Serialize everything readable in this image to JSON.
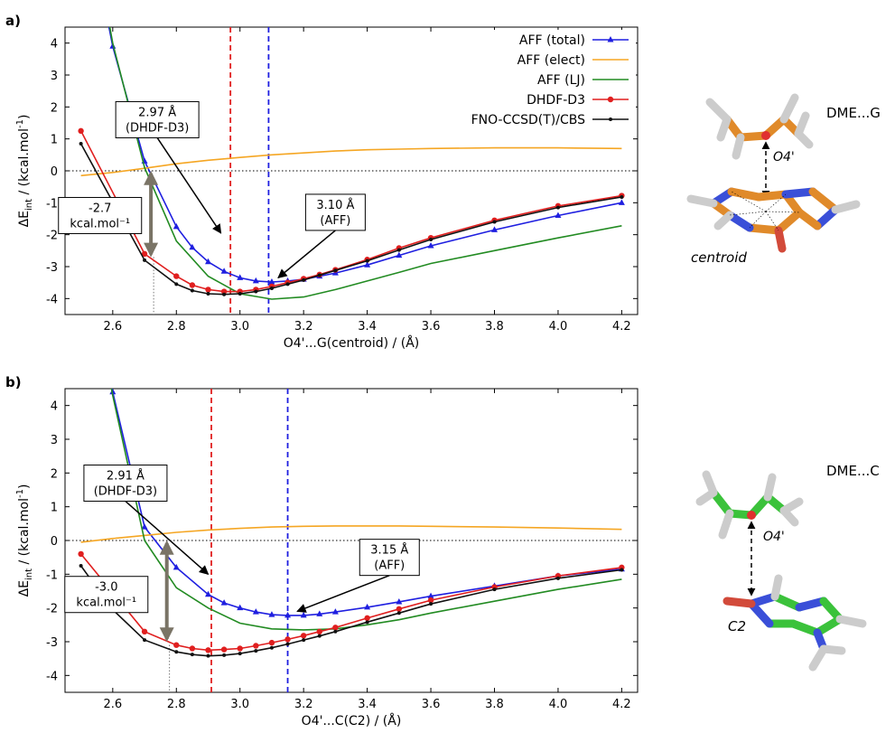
{
  "chart_data": [
    {
      "type": "line",
      "panel_label": "a)",
      "xlabel": "O4'...G(centroid) / (Å)",
      "ylabel_main": "ΔE",
      "ylabel_sub": "int",
      "ylabel_rest": " / (kcal.mol",
      "ylabel_sup": "-1",
      "ylabel_close": ")",
      "xlim": [
        2.45,
        4.25
      ],
      "ylim": [
        -4.5,
        4.5
      ],
      "xticks": [
        "2.6",
        "2.8",
        "3.0",
        "3.2",
        "3.4",
        "3.6",
        "3.8",
        "4.0",
        "4.2"
      ],
      "yticks": [
        "-4",
        "-3",
        "-2",
        "-1",
        "0",
        "1",
        "2",
        "3",
        "4"
      ],
      "legend_position": "top-right",
      "series": [
        {
          "name": "AFF (total)",
          "color": "#1f1fe0",
          "marker": "triangle",
          "x": [
            2.5,
            2.6,
            2.7,
            2.8,
            2.85,
            2.9,
            2.95,
            3.0,
            3.05,
            3.1,
            3.15,
            3.2,
            3.25,
            3.3,
            3.4,
            3.5,
            3.6,
            3.8,
            4.0,
            4.2
          ],
          "y": [
            9.0,
            3.9,
            0.3,
            -1.75,
            -2.4,
            -2.85,
            -3.15,
            -3.35,
            -3.45,
            -3.48,
            -3.45,
            -3.4,
            -3.3,
            -3.2,
            -2.95,
            -2.65,
            -2.35,
            -1.85,
            -1.4,
            -1.0
          ]
        },
        {
          "name": "AFF (elect)",
          "color": "#f5a623",
          "marker": "none",
          "x": [
            2.5,
            2.6,
            2.7,
            2.8,
            2.9,
            3.0,
            3.1,
            3.2,
            3.3,
            3.4,
            3.5,
            3.6,
            3.8,
            4.0,
            4.2
          ],
          "y": [
            -0.15,
            -0.05,
            0.08,
            0.22,
            0.33,
            0.42,
            0.5,
            0.56,
            0.62,
            0.66,
            0.68,
            0.7,
            0.72,
            0.72,
            0.7
          ]
        },
        {
          "name": "AFF (LJ)",
          "color": "#228b22",
          "marker": "none",
          "x": [
            2.5,
            2.6,
            2.7,
            2.8,
            2.9,
            3.0,
            3.1,
            3.2,
            3.3,
            3.4,
            3.5,
            3.6,
            3.8,
            4.0,
            4.2
          ],
          "y": [
            9.5,
            4.0,
            0.1,
            -2.2,
            -3.3,
            -3.85,
            -4.02,
            -3.95,
            -3.72,
            -3.45,
            -3.18,
            -2.9,
            -2.5,
            -2.1,
            -1.72
          ]
        },
        {
          "name": "DHDF-D3",
          "color": "#e01f1f",
          "marker": "circle",
          "x": [
            2.5,
            2.7,
            2.8,
            2.85,
            2.9,
            2.95,
            3.0,
            3.05,
            3.1,
            3.15,
            3.2,
            3.25,
            3.3,
            3.4,
            3.5,
            3.6,
            3.8,
            4.0,
            4.2
          ],
          "y": [
            1.25,
            -2.6,
            -3.3,
            -3.58,
            -3.72,
            -3.78,
            -3.78,
            -3.72,
            -3.62,
            -3.5,
            -3.38,
            -3.25,
            -3.1,
            -2.78,
            -2.42,
            -2.1,
            -1.55,
            -1.1,
            -0.78
          ]
        },
        {
          "name": "FNO-CCSD(T)/CBS",
          "color": "#111111",
          "marker": "dot",
          "x": [
            2.5,
            2.7,
            2.8,
            2.85,
            2.9,
            2.95,
            3.0,
            3.05,
            3.1,
            3.15,
            3.2,
            3.25,
            3.3,
            3.4,
            3.5,
            3.6,
            3.8,
            4.0,
            4.2
          ],
          "y": [
            0.85,
            -2.8,
            -3.55,
            -3.75,
            -3.85,
            -3.87,
            -3.85,
            -3.78,
            -3.68,
            -3.55,
            -3.42,
            -3.27,
            -3.12,
            -2.82,
            -2.48,
            -2.15,
            -1.6,
            -1.15,
            -0.82
          ]
        }
      ],
      "vlines": [
        {
          "x": 2.97,
          "color": "#e01f1f"
        },
        {
          "x": 3.09,
          "color": "#1f1fe0"
        }
      ],
      "annotations": [
        {
          "lines": [
            "2.97 Å",
            "(DHDF-D3)"
          ],
          "box_x": 2.74,
          "box_y": 1.6,
          "arrow_to": [
            2.94,
            -1.95
          ]
        },
        {
          "lines": [
            "3.10 Å",
            "(AFF)"
          ],
          "box_x": 3.3,
          "box_y": -1.3,
          "arrow_to": [
            3.12,
            -3.35
          ]
        },
        {
          "lines": [
            "-2.7",
            "kcal.mol⁻¹"
          ],
          "box_x": 2.56,
          "box_y": -1.4,
          "arrow_to": null
        }
      ],
      "double_arrow": {
        "x": 2.72,
        "y_from": 0.0,
        "y_to": -2.7
      },
      "molecule_label": "DME...G",
      "atom_labels": [
        "O4'",
        "centroid"
      ]
    },
    {
      "type": "line",
      "panel_label": "b)",
      "xlabel": "O4'...C(C2) / (Å)",
      "ylabel_main": "ΔE",
      "ylabel_sub": "int",
      "ylabel_rest": " / (kcal.mol",
      "ylabel_sup": "-1",
      "ylabel_close": ")",
      "xlim": [
        2.45,
        4.25
      ],
      "ylim": [
        -4.5,
        4.5
      ],
      "xticks": [
        "2.6",
        "2.8",
        "3.0",
        "3.2",
        "3.4",
        "3.6",
        "3.8",
        "4.0",
        "4.2"
      ],
      "yticks": [
        "-4",
        "-3",
        "-2",
        "-1",
        "0",
        "1",
        "2",
        "3",
        "4"
      ],
      "series": [
        {
          "name": "AFF (total)",
          "color": "#1f1fe0",
          "marker": "triangle",
          "x": [
            2.5,
            2.6,
            2.7,
            2.8,
            2.9,
            2.95,
            3.0,
            3.05,
            3.1,
            3.15,
            3.2,
            3.25,
            3.3,
            3.4,
            3.5,
            3.6,
            3.8,
            4.0,
            4.2
          ],
          "y": [
            9.0,
            4.4,
            0.4,
            -0.8,
            -1.6,
            -1.85,
            -2.0,
            -2.12,
            -2.2,
            -2.22,
            -2.22,
            -2.18,
            -2.12,
            -1.98,
            -1.82,
            -1.65,
            -1.35,
            -1.05,
            -0.85
          ]
        },
        {
          "name": "AFF (elect)",
          "color": "#f5a623",
          "marker": "none",
          "x": [
            2.5,
            2.6,
            2.7,
            2.8,
            2.9,
            3.0,
            3.1,
            3.2,
            3.3,
            3.4,
            3.5,
            3.6,
            3.8,
            4.0,
            4.2
          ],
          "y": [
            -0.05,
            0.06,
            0.15,
            0.24,
            0.31,
            0.36,
            0.4,
            0.42,
            0.43,
            0.43,
            0.43,
            0.42,
            0.4,
            0.37,
            0.33
          ]
        },
        {
          "name": "AFF (LJ)",
          "color": "#228b22",
          "marker": "none",
          "x": [
            2.5,
            2.6,
            2.7,
            2.8,
            2.9,
            3.0,
            3.1,
            3.2,
            3.3,
            3.4,
            3.5,
            3.6,
            3.8,
            4.0,
            4.2
          ],
          "y": [
            9.5,
            4.3,
            0.0,
            -1.4,
            -2.0,
            -2.45,
            -2.62,
            -2.65,
            -2.62,
            -2.5,
            -2.35,
            -2.15,
            -1.8,
            -1.45,
            -1.15
          ]
        },
        {
          "name": "DHDF-D3",
          "color": "#e01f1f",
          "marker": "circle",
          "x": [
            2.5,
            2.7,
            2.8,
            2.85,
            2.9,
            2.95,
            3.0,
            3.05,
            3.1,
            3.15,
            3.2,
            3.25,
            3.3,
            3.4,
            3.5,
            3.6,
            3.8,
            4.0,
            4.2
          ],
          "y": [
            -0.4,
            -2.7,
            -3.1,
            -3.2,
            -3.25,
            -3.23,
            -3.2,
            -3.12,
            -3.03,
            -2.93,
            -2.82,
            -2.7,
            -2.58,
            -2.3,
            -2.03,
            -1.77,
            -1.38,
            -1.05,
            -0.8
          ]
        },
        {
          "name": "FNO-CCSD(T)/CBS",
          "color": "#111111",
          "marker": "dot",
          "x": [
            2.5,
            2.6,
            2.7,
            2.8,
            2.85,
            2.9,
            2.95,
            3.0,
            3.05,
            3.1,
            3.15,
            3.2,
            3.25,
            3.3,
            3.4,
            3.5,
            3.6,
            3.8,
            4.0,
            4.2
          ],
          "y": [
            -0.75,
            -2.05,
            -2.95,
            -3.3,
            -3.38,
            -3.42,
            -3.4,
            -3.35,
            -3.27,
            -3.18,
            -3.07,
            -2.95,
            -2.83,
            -2.7,
            -2.42,
            -2.15,
            -1.88,
            -1.45,
            -1.12,
            -0.87
          ]
        }
      ],
      "vlines": [
        {
          "x": 2.91,
          "color": "#e01f1f"
        },
        {
          "x": 3.15,
          "color": "#1f1fe0"
        }
      ],
      "annotations": [
        {
          "lines": [
            "2.91 Å",
            "(DHDF-D3)"
          ],
          "box_x": 2.64,
          "box_y": 1.7,
          "arrow_to": [
            2.9,
            -1.0
          ]
        },
        {
          "lines": [
            "3.15 Å",
            "(AFF)"
          ],
          "box_x": 3.47,
          "box_y": -0.5,
          "arrow_to": [
            3.18,
            -2.1
          ]
        },
        {
          "lines": [
            "-3.0",
            "kcal.mol⁻¹"
          ],
          "box_x": 2.58,
          "box_y": -1.6,
          "arrow_to": null
        }
      ],
      "double_arrow": {
        "x": 2.77,
        "y_from": 0.0,
        "y_to": -3.0
      },
      "molecule_label": "DME...C",
      "atom_labels": [
        "O4'",
        "C2"
      ]
    }
  ]
}
